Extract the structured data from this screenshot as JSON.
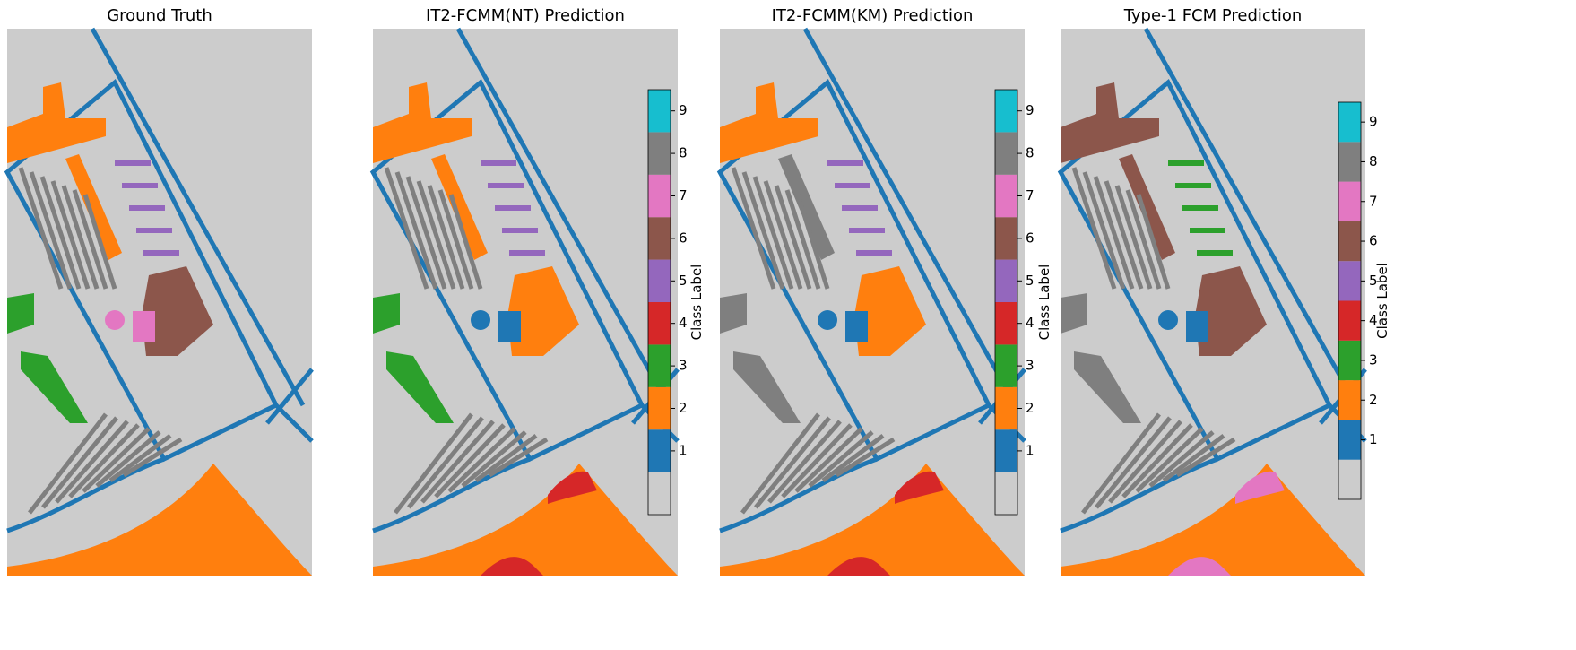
{
  "chart_data": [
    {
      "type": "image",
      "title": "Ground Truth"
    },
    {
      "type": "image",
      "title": "IT2-FCMM(NT) Prediction",
      "colorbar_label": "Class Label",
      "clim": [
        -0.5,
        9.5
      ],
      "cticks": [
        1,
        2,
        3,
        4,
        5,
        6,
        7,
        8,
        9
      ],
      "colors": [
        "#cccccc",
        "#1f77b4",
        "#ff7f0e",
        "#2ca02c",
        "#d62728",
        "#9467bd",
        "#8c564b",
        "#e377c2",
        "#7f7f7f",
        "#17becf"
      ]
    },
    {
      "type": "image",
      "title": "IT2-FCMM(KM) Prediction",
      "colorbar_label": "Class Label",
      "clim": [
        -0.5,
        9.5
      ],
      "cticks": [
        1,
        2,
        3,
        4,
        5,
        6,
        7,
        8,
        9
      ],
      "colors": [
        "#cccccc",
        "#1f77b4",
        "#ff7f0e",
        "#2ca02c",
        "#d62728",
        "#9467bd",
        "#8c564b",
        "#e377c2",
        "#7f7f7f",
        "#17becf"
      ]
    },
    {
      "type": "image",
      "title": "Type-1 FCM Prediction",
      "colorbar_label": "Class Label",
      "clim": [
        -0.5,
        9.5
      ],
      "cticks": [
        1,
        2,
        3,
        4,
        5,
        6,
        7,
        8,
        9
      ],
      "colors": [
        "#cccccc",
        "#1f77b4",
        "#ff7f0e",
        "#2ca02c",
        "#d62728",
        "#9467bd",
        "#8c564b",
        "#e377c2",
        "#7f7f7f",
        "#17becf"
      ]
    }
  ]
}
